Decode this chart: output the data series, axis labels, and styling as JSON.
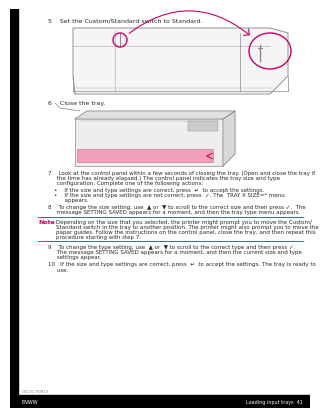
{
  "bg_color": "#ffffff",
  "step5_text": "5    Set the Custom/Standard switch to Standard.",
  "step6_text": "6    Close the tray.",
  "step7_lines": [
    "7    Look at the control panel within a few seconds of closing the tray. (Open and close the tray if",
    "     the time has already elapsed.) The control panel indicates the tray size and type",
    "     configuration. Complete one of the following actions:"
  ],
  "bullet1": "•    If the size and type settings are correct, press  ↵  to accept the settings.",
  "bullet2a": "•    If the size and type settings are not correct, press  ✓. The  TRAY X SIZE=* menu",
  "bullet2b": "      appears.",
  "step8_lines": [
    "8    To change the size setting, use  ▲ or  ▼ to scroll to the correct size and then press ✓.  The",
    "     message SETTING SAVED appears for a moment, and then the tray type menu appears."
  ],
  "note_label": "Note",
  "note_lines": [
    "Depending on the size that you selected, the printer might prompt you to move the Custom/",
    "Standard switch in the tray to another position. The printer might also prompt you to move the",
    "paper guides. Follow the instructions on the control panel, close the tray, and then repeat this",
    "procedure starting with step 7."
  ],
  "step9_lines": [
    "9    To change the type setting, use  ▲ or  ▼ to scroll to the correct type and then press ✓.",
    "     The message SETTING SAVED appears for a moment, and then the current size and type",
    "     settings appear."
  ],
  "step10_lines": [
    "10   If the size and type settings are correct, press  ↵  to accept the settings. The tray is ready to",
    "     use."
  ],
  "footer_left": "ENWW",
  "footer_right": "Loading input trays  41",
  "part_number": "C4110-90913",
  "text_color": "#2a2a2a",
  "note_color": "#cc0066",
  "line_color": "#cc0066",
  "gray_draw": "#888888",
  "light_gray": "#aaaaaa",
  "pink_fill": "#f0a0b8",
  "footer_bar_color": "#000000",
  "left_bar_color": "#000000"
}
